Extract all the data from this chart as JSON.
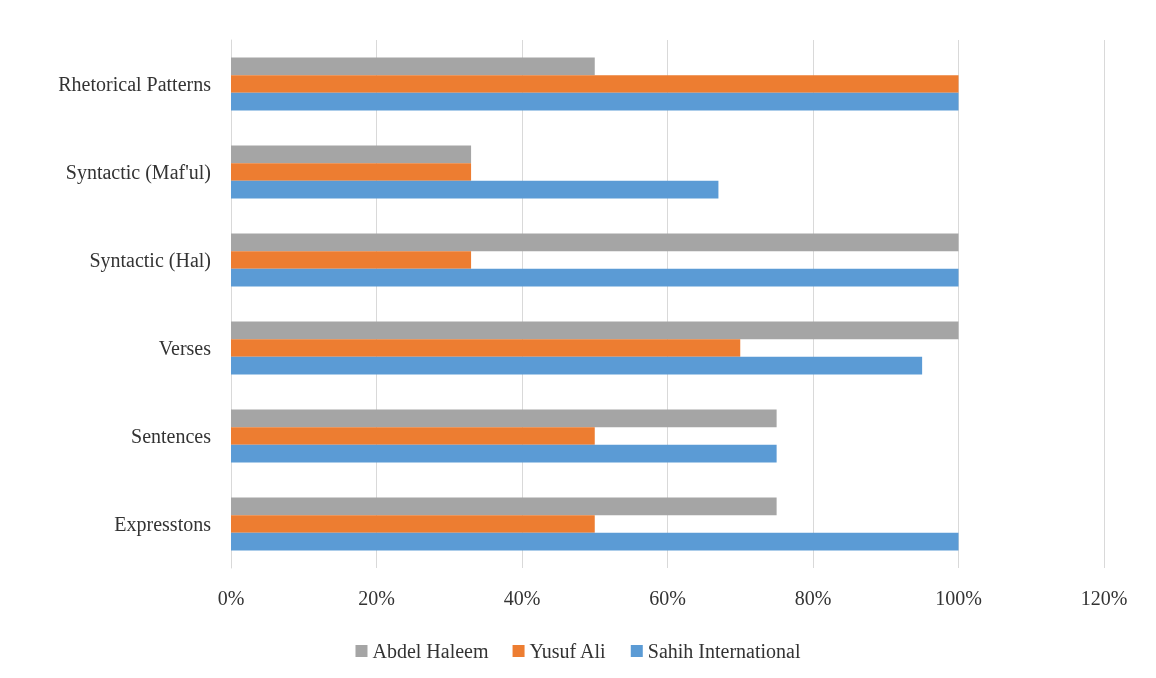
{
  "chart_data": {
    "type": "bar",
    "orientation": "horizontal",
    "categories": [
      "Rhetorical Patterns",
      "Syntactic (Maf'ul)",
      "Syntactic (Hal)",
      "Verses",
      "Sentences",
      "Expresstons"
    ],
    "series": [
      {
        "name": "Abdel Haleem",
        "color": "#a5a5a5",
        "values": [
          50,
          33,
          100,
          100,
          75,
          75
        ]
      },
      {
        "name": "Yusuf Ali",
        "color": "#ed7d31",
        "values": [
          100,
          33,
          33,
          70,
          50,
          50
        ]
      },
      {
        "name": "Sahih International",
        "color": "#5b9bd5",
        "values": [
          100,
          67,
          100,
          95,
          75,
          100
        ]
      }
    ],
    "xlim": [
      0,
      120
    ],
    "xticks": [
      {
        "value": 0,
        "label": "0%"
      },
      {
        "value": 20,
        "label": "20%"
      },
      {
        "value": 40,
        "label": "40%"
      },
      {
        "value": 60,
        "label": "60%"
      },
      {
        "value": 80,
        "label": "80%"
      },
      {
        "value": 100,
        "label": "100%"
      },
      {
        "value": 120,
        "label": "120%"
      }
    ],
    "grid": "x",
    "legend": "bottom"
  }
}
